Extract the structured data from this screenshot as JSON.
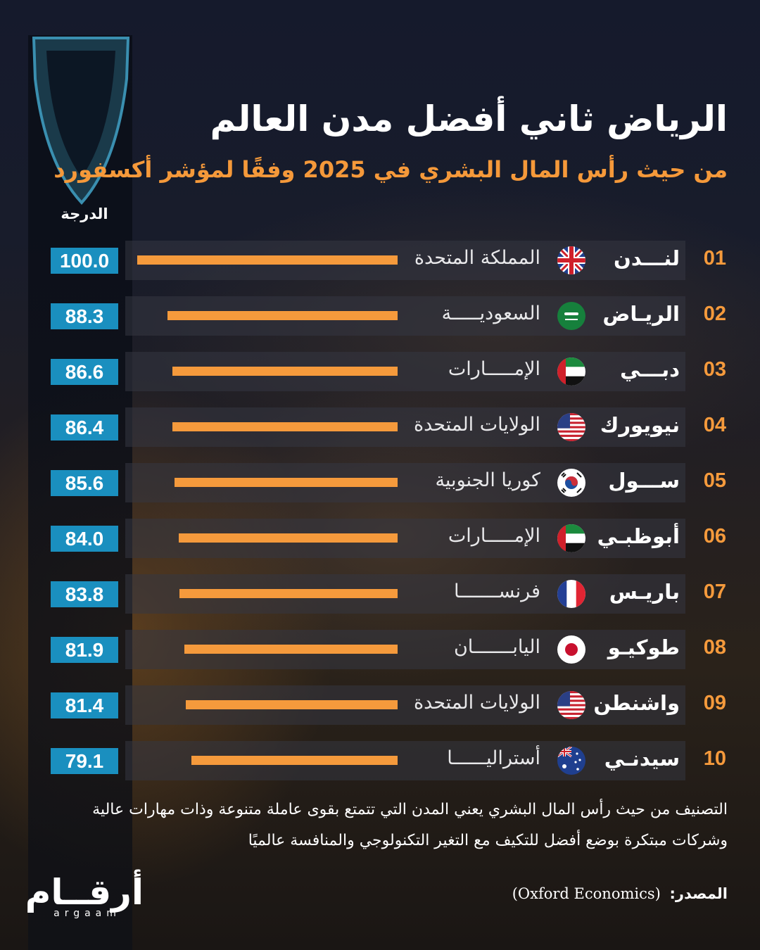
{
  "header": {
    "title": "الرياض ثاني أفضل مدن العالم",
    "subtitle": "من حيث رأس المال البشري في 2025 وفقًا لمؤشر أكسفورد"
  },
  "chart_data": {
    "type": "bar",
    "orientation": "horizontal",
    "value_label": "الدرجة",
    "xlim": [
      0,
      100
    ],
    "bar_color": "#f59a3c",
    "score_box_color": "#1a8fbf",
    "rows": [
      {
        "rank": "01",
        "city": "لنـــدن",
        "country": "المملكة المتحدة",
        "flag": "uk",
        "value": 100.0,
        "value_label": "100.0"
      },
      {
        "rank": "02",
        "city": "الريـاض",
        "country": "السعوديـــــة",
        "flag": "saudi",
        "value": 88.3,
        "value_label": "88.3"
      },
      {
        "rank": "03",
        "city": "دبـــي",
        "country": "الإمـــــارات",
        "flag": "uae",
        "value": 86.6,
        "value_label": "86.6"
      },
      {
        "rank": "04",
        "city": "نيويورك",
        "country": "الولايات المتحدة",
        "flag": "usa",
        "value": 86.4,
        "value_label": "86.4"
      },
      {
        "rank": "05",
        "city": "ســـول",
        "country": "كوريا الجنوبية",
        "flag": "korea",
        "value": 85.6,
        "value_label": "85.6"
      },
      {
        "rank": "06",
        "city": "أبوظبـي",
        "country": "الإمـــــارات",
        "flag": "uae",
        "value": 84.0,
        "value_label": "84.0"
      },
      {
        "rank": "07",
        "city": "باريـس",
        "country": "فرنســـــــا",
        "flag": "france",
        "value": 83.8,
        "value_label": "83.8"
      },
      {
        "rank": "08",
        "city": "طوكيـو",
        "country": "اليابـــــــان",
        "flag": "japan",
        "value": 81.9,
        "value_label": "81.9"
      },
      {
        "rank": "09",
        "city": "واشنطن",
        "country": "الولايات المتحدة",
        "flag": "usa",
        "value": 81.4,
        "value_label": "81.4"
      },
      {
        "rank": "10",
        "city": "سيدنـي",
        "country": "أستراليــــــا",
        "flag": "australia",
        "value": 79.1,
        "value_label": "79.1"
      }
    ]
  },
  "footer": {
    "note_line1": "التصنيف من حيث رأس المال البشري يعني المدن التي تتمتع بقوى عاملة متنوعة وذات مهارات عالية",
    "note_line2": "وشركات مبتكرة بوضع أفضل للتكيف مع التغير التكنولوجي والمنافسة عالميًا",
    "source_label": "المصدر:",
    "source_value": "(Oxford Economics)",
    "logo_ar": "أرقــام",
    "logo_lat": "argaam"
  }
}
